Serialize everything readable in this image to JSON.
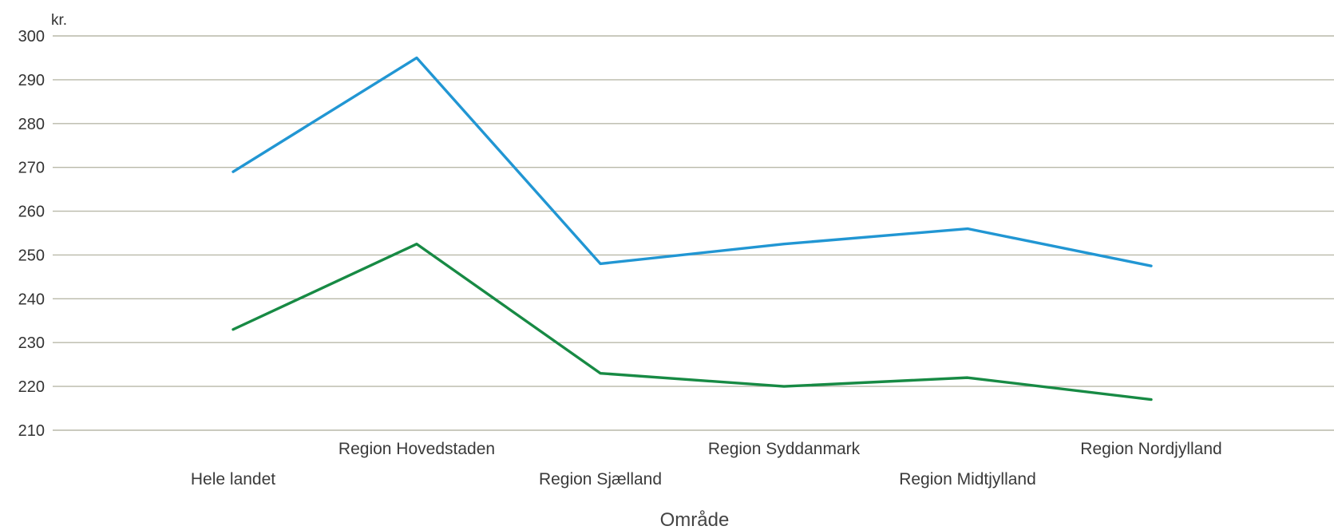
{
  "chart_data": {
    "type": "line",
    "categories": [
      "Hele landet",
      "Region Hovedstaden",
      "Region Sjælland",
      "Region Syddanmark",
      "Region Midtjylland",
      "Region Nordjylland"
    ],
    "series": [
      {
        "color": "#2196d3",
        "values": [
          269,
          295,
          248,
          252.5,
          256,
          247.5
        ]
      },
      {
        "color": "#178a44",
        "values": [
          233,
          252.5,
          223,
          220,
          222,
          217
        ]
      }
    ],
    "y_unit": "kr.",
    "xlabel": "Område",
    "ylabel": "",
    "ylim": [
      210,
      300
    ],
    "y_ticks": [
      300,
      290,
      280,
      270,
      260,
      250,
      240,
      230,
      220,
      210
    ],
    "grid": true,
    "legend": "none"
  }
}
